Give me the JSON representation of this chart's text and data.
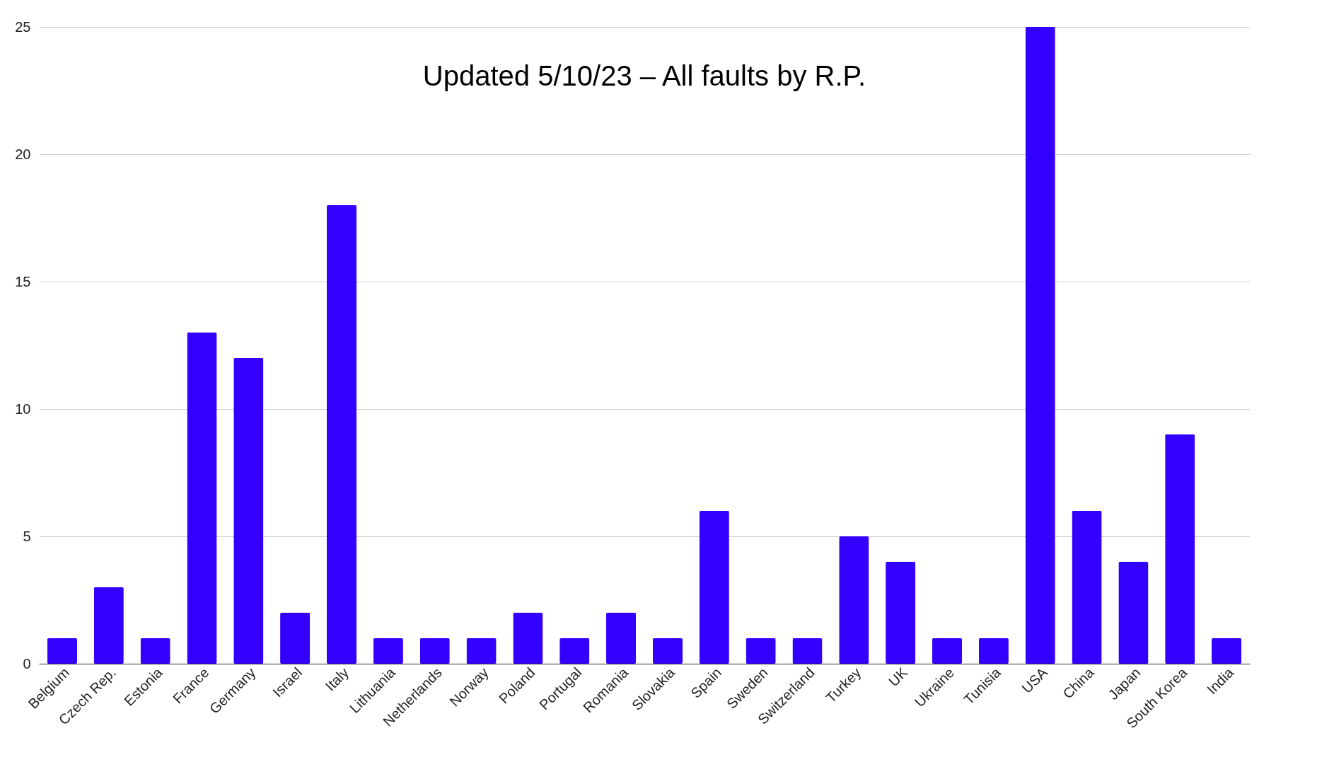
{
  "chart_data": {
    "type": "bar",
    "title": "Updated 5/10/23 – All faults by R.P.",
    "categories": [
      "Belgium",
      "Czech Rep.",
      "Estonia",
      "France",
      "Germany",
      "Israel",
      "Italy",
      "Lithuania",
      "Netherlands",
      "Norway",
      "Poland",
      "Portugal",
      "Romania",
      "Slovakia",
      "Spain",
      "Sweden",
      "Switzerland",
      "Turkey",
      "UK",
      "Ukraine",
      "Tunisia",
      "USA",
      "China",
      "Japan",
      "South Korea",
      "India"
    ],
    "values": [
      1,
      3,
      1,
      13,
      12,
      2,
      18,
      1,
      1,
      1,
      2,
      1,
      2,
      1,
      6,
      1,
      1,
      5,
      4,
      1,
      1,
      25,
      6,
      4,
      9,
      1
    ],
    "color": "#3300ff",
    "ylim": [
      0,
      25
    ],
    "yticks": [
      0,
      5,
      10,
      15,
      20,
      25
    ],
    "grid": "y"
  }
}
